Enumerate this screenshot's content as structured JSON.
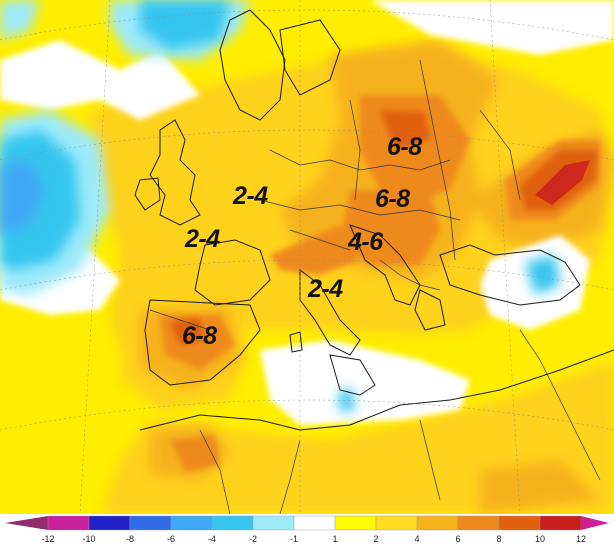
{
  "map": {
    "labels": [
      {
        "id": "baltic",
        "text": "6-8"
      },
      {
        "id": "poland",
        "text": "6-8"
      },
      {
        "id": "balkans",
        "text": "4-6"
      },
      {
        "id": "germany",
        "text": "2-4"
      },
      {
        "id": "britain",
        "text": "2-4"
      },
      {
        "id": "italy",
        "text": "2-4"
      },
      {
        "id": "iberia",
        "text": "6-8"
      }
    ]
  },
  "legend": {
    "ticks": [
      "-12",
      "-10",
      "-8",
      "-6",
      "-4",
      "-2",
      "-1",
      "1",
      "2",
      "4",
      "6",
      "8",
      "10",
      "12"
    ],
    "colors": {
      "lt_-12": "#8f2d6e",
      "-12_-10": "#c8209a",
      "-10_-8": "#2121c8",
      "-8_-6": "#2f6be6",
      "-6_-4": "#3fa9f5",
      "-4_-2": "#35c6ef",
      "-2_-1": "#9deafb",
      "-1_1": "#ffffff",
      "1_2": "#fffa00",
      "2_4": "#ffdc1f",
      "4_6": "#f6b21b",
      "6_8": "#ee8a1e",
      "8_10": "#e0600e",
      "10_12": "#c81e1e",
      "gt_12": "#d01e95"
    }
  }
}
